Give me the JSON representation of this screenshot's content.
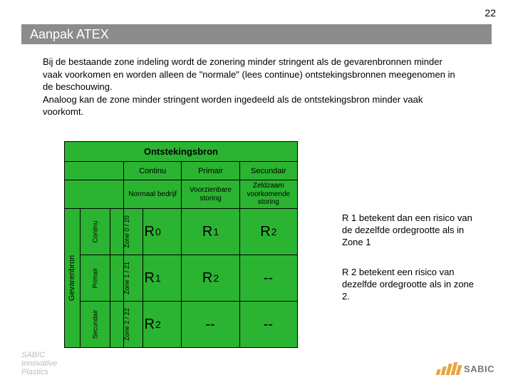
{
  "page_number": "22",
  "title": "Aanpak ATEX",
  "paragraph": "Bij de bestaande zone indeling wordt de zonering minder stringent als de gevarenbronnen minder vaak voorkomen en worden alleen de \"normale\" (lees continue) ontstekingsbronnen meegenomen in de beschouwing.\nAnaloog kan de zone minder stringent worden ingedeeld als de ontstekingsbron minder vaak voorkomt.",
  "matrix": {
    "title": "Ontstekingsbron",
    "col_headers": [
      "Continu",
      "Primair",
      "Secundair"
    ],
    "col_subheaders": [
      "Normaal bedrijf",
      "Voorzienbare storing",
      "Zeldzaam voorkomende storing"
    ],
    "row_major": "Gevarenbron",
    "row_labels": [
      {
        "a": "Continu",
        "b": "Zone 0 / 20"
      },
      {
        "a": "Primair",
        "b": "Zone 1 / 21"
      },
      {
        "a": "Secundair",
        "b": "Zone 2 / 22"
      }
    ],
    "cells": [
      [
        {
          "big": "R",
          "sub": "0"
        },
        {
          "big": "R",
          "sub": "1"
        },
        {
          "big": "R",
          "sub": "2"
        }
      ],
      [
        {
          "big": "R",
          "sub": "1"
        },
        {
          "big": "R",
          "sub": "2"
        },
        {
          "big": "--",
          "sub": ""
        }
      ],
      [
        {
          "big": "R",
          "sub": "2"
        },
        {
          "big": "--",
          "sub": ""
        },
        {
          "big": "--",
          "sub": ""
        }
      ]
    ],
    "bg_color": "#2bb431"
  },
  "note1": "R 1 betekent dan een risico van de dezelfde ordegrootte als in Zone 1",
  "note2": "R 2 betekent een risico van dezelfde ordegrootte als in zone 2.",
  "footer_left": "SABIC\nInnovative\nPlastics",
  "footer_logo_text": "SABIC"
}
